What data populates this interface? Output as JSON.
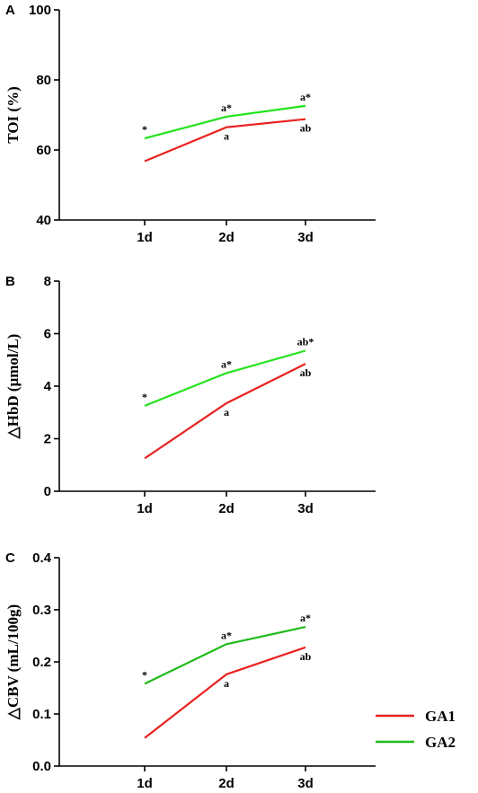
{
  "chart_data": [
    {
      "type": "line",
      "panel": "A",
      "categories": [
        "1d",
        "2d",
        "3d"
      ],
      "ylabel": "TOI (%)",
      "ylim": [
        40,
        100
      ],
      "yticks": [
        "40",
        "60",
        "80",
        "100"
      ],
      "series": [
        {
          "name": "GA1",
          "color": "#e8221f",
          "values": [
            56.8,
            66.5,
            68.8
          ],
          "annotations": [
            "",
            "a",
            "ab"
          ]
        },
        {
          "name": "GA2",
          "color": "#22e31a",
          "values": [
            63.3,
            69.5,
            72.6
          ],
          "annotations": [
            "*",
            "a*",
            "a*"
          ]
        }
      ]
    },
    {
      "type": "line",
      "panel": "B",
      "categories": [
        "1d",
        "2d",
        "3d"
      ],
      "ylabel": "△HbD (μmol/L)",
      "ylim": [
        0,
        8
      ],
      "yticks": [
        "0",
        "2",
        "4",
        "6",
        "8"
      ],
      "series": [
        {
          "name": "GA1",
          "color": "#e8221f",
          "values": [
            1.25,
            3.35,
            4.85
          ],
          "annotations": [
            "",
            "a",
            "ab"
          ]
        },
        {
          "name": "GA2",
          "color": "#22e31a",
          "values": [
            3.25,
            4.5,
            5.35
          ],
          "annotations": [
            "*",
            "a*",
            "ab*"
          ]
        }
      ]
    },
    {
      "type": "line",
      "panel": "C",
      "categories": [
        "1d",
        "2d",
        "3d"
      ],
      "ylabel": "△CBV (mL/100g)",
      "ylim": [
        0,
        0.4
      ],
      "yticks": [
        "0.0",
        "0.1",
        "0.2",
        "0.3",
        "0.4"
      ],
      "series": [
        {
          "name": "GA1",
          "color": "#e8221f",
          "values": [
            0.054,
            0.176,
            0.228
          ],
          "annotations": [
            "",
            "a",
            "ab"
          ]
        },
        {
          "name": "GA2",
          "color": "#1fbb1a",
          "values": [
            0.158,
            0.234,
            0.267
          ],
          "annotations": [
            "*",
            "a*",
            "a*"
          ]
        }
      ]
    }
  ],
  "legend": [
    {
      "label": "GA1",
      "color": "#e8221f"
    },
    {
      "label": "GA2",
      "color": "#1fbb1a"
    }
  ]
}
